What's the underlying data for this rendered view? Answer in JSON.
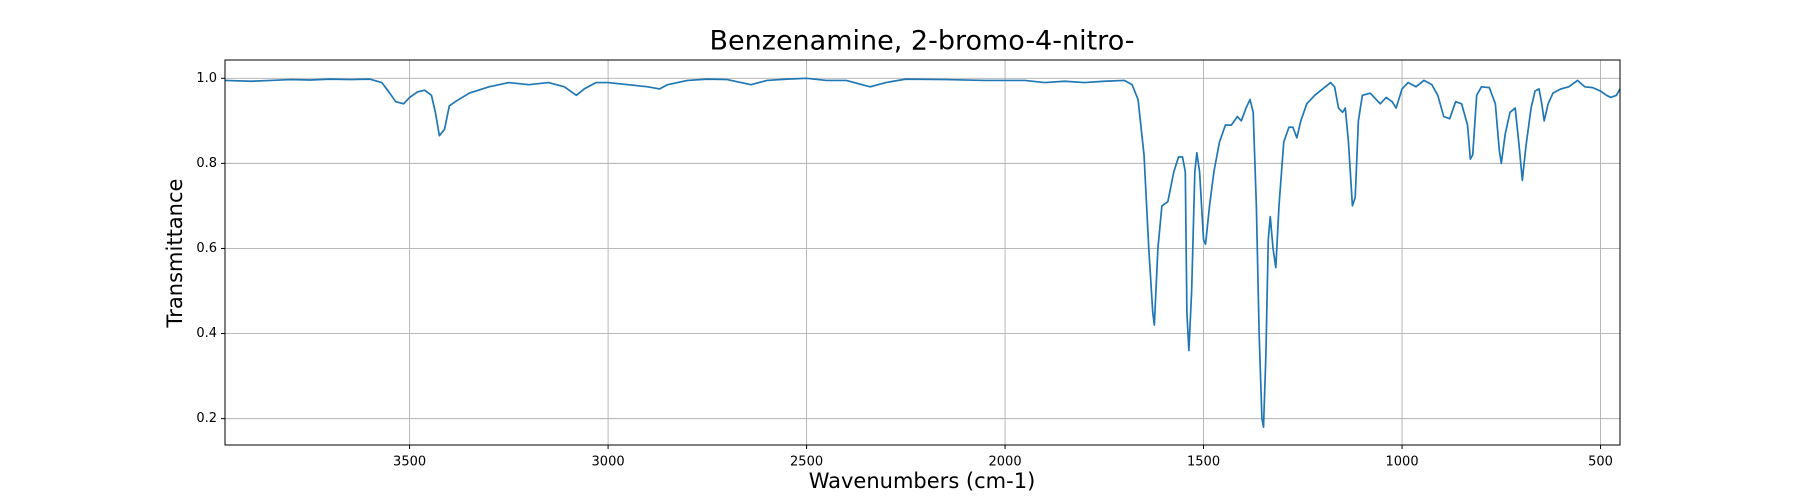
{
  "chart_data": {
    "type": "line",
    "title": "Benzenamine, 2-bromo-4-nitro-",
    "x_label": "Wavenumbers (cm-1)",
    "y_label": "Transmittance",
    "color": "#1f77b4",
    "grid": true,
    "xlim": [
      3965,
      451
    ],
    "ylim": [
      0.138,
      1.043
    ],
    "xticks": [
      3500,
      3000,
      2500,
      2000,
      1500,
      1000,
      500
    ],
    "yticks": [
      0.2,
      0.4,
      0.6,
      0.8,
      {
        "value": 1.0,
        "label": "1.0"
      }
    ],
    "x": [
      3965,
      3900,
      3850,
      3800,
      3750,
      3700,
      3650,
      3600,
      3570,
      3550,
      3535,
      3515,
      3500,
      3480,
      3462,
      3445,
      3435,
      3425,
      3412,
      3400,
      3385,
      3350,
      3300,
      3250,
      3200,
      3150,
      3110,
      3080,
      3060,
      3030,
      3000,
      2950,
      2900,
      2870,
      2850,
      2800,
      2750,
      2700,
      2640,
      2600,
      2550,
      2500,
      2450,
      2400,
      2360,
      2340,
      2300,
      2250,
      2150,
      2050,
      1950,
      1900,
      1850,
      1800,
      1750,
      1700,
      1680,
      1665,
      1650,
      1638,
      1628,
      1624,
      1615,
      1605,
      1590,
      1575,
      1563,
      1553,
      1546,
      1542,
      1537,
      1530,
      1522,
      1517,
      1510,
      1500,
      1495,
      1485,
      1474,
      1460,
      1445,
      1430,
      1415,
      1405,
      1393,
      1383,
      1375,
      1367,
      1360,
      1353,
      1349,
      1343,
      1337,
      1332,
      1325,
      1318,
      1310,
      1298,
      1285,
      1275,
      1265,
      1255,
      1240,
      1220,
      1200,
      1180,
      1170,
      1160,
      1150,
      1143,
      1135,
      1125,
      1118,
      1110,
      1100,
      1080,
      1065,
      1055,
      1040,
      1025,
      1015,
      1000,
      985,
      965,
      945,
      925,
      910,
      895,
      880,
      865,
      850,
      835,
      828,
      822,
      812,
      800,
      780,
      765,
      755,
      750,
      740,
      728,
      715,
      705,
      697,
      688,
      675,
      665,
      655,
      648,
      642,
      632,
      620,
      600,
      580,
      558,
      540,
      520,
      500,
      485,
      474,
      460,
      451
    ],
    "values": [
      0.995,
      0.993,
      0.995,
      0.997,
      0.996,
      0.998,
      0.997,
      0.998,
      0.99,
      0.965,
      0.945,
      0.94,
      0.955,
      0.968,
      0.972,
      0.96,
      0.92,
      0.865,
      0.88,
      0.935,
      0.945,
      0.965,
      0.98,
      0.99,
      0.985,
      0.99,
      0.98,
      0.96,
      0.975,
      0.99,
      0.99,
      0.985,
      0.98,
      0.975,
      0.985,
      0.995,
      0.998,
      0.997,
      0.985,
      0.995,
      0.998,
      1.0,
      0.995,
      0.995,
      0.985,
      0.98,
      0.99,
      0.998,
      0.997,
      0.995,
      0.995,
      0.99,
      0.993,
      0.99,
      0.993,
      0.995,
      0.985,
      0.95,
      0.82,
      0.6,
      0.45,
      0.42,
      0.6,
      0.7,
      0.71,
      0.78,
      0.815,
      0.815,
      0.78,
      0.45,
      0.36,
      0.5,
      0.78,
      0.825,
      0.78,
      0.62,
      0.61,
      0.7,
      0.78,
      0.85,
      0.89,
      0.89,
      0.91,
      0.9,
      0.93,
      0.95,
      0.92,
      0.7,
      0.4,
      0.2,
      0.18,
      0.35,
      0.62,
      0.675,
      0.6,
      0.555,
      0.7,
      0.85,
      0.885,
      0.885,
      0.86,
      0.9,
      0.94,
      0.96,
      0.975,
      0.99,
      0.98,
      0.93,
      0.92,
      0.93,
      0.85,
      0.7,
      0.72,
      0.9,
      0.96,
      0.965,
      0.95,
      0.94,
      0.955,
      0.945,
      0.93,
      0.975,
      0.99,
      0.98,
      0.995,
      0.985,
      0.96,
      0.91,
      0.905,
      0.945,
      0.94,
      0.89,
      0.81,
      0.82,
      0.96,
      0.98,
      0.978,
      0.94,
      0.83,
      0.8,
      0.87,
      0.92,
      0.93,
      0.84,
      0.76,
      0.84,
      0.93,
      0.97,
      0.975,
      0.94,
      0.9,
      0.94,
      0.965,
      0.975,
      0.98,
      0.995,
      0.98,
      0.978,
      0.97,
      0.96,
      0.955,
      0.96,
      0.975
    ]
  }
}
